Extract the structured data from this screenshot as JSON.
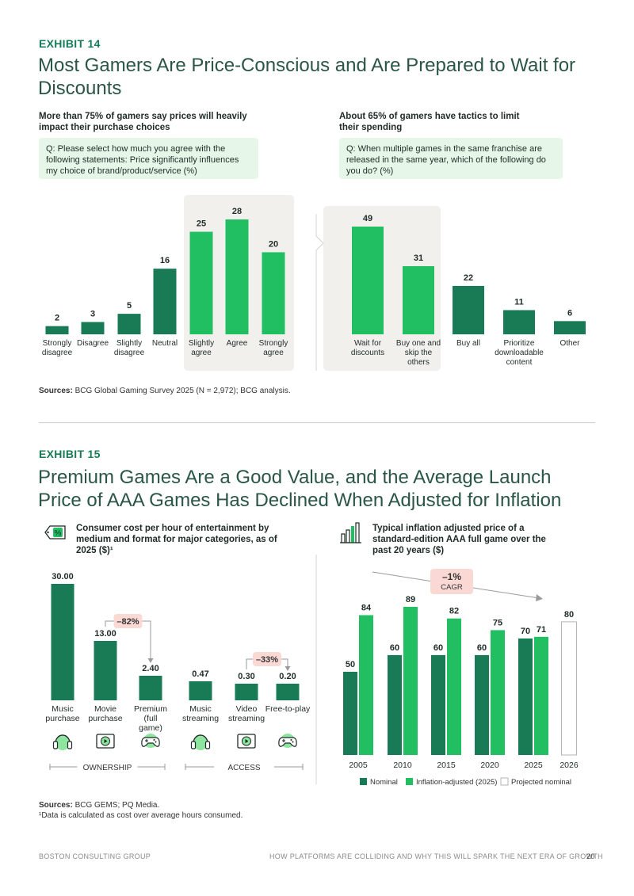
{
  "exhibit14": {
    "label": "EXHIBIT 14",
    "title": "Most Gamers Are Price-Conscious and Are Prepared to Wait for Discounts",
    "left_subtitle": "More than 75% of gamers say prices will heavily impact their purchase choices",
    "left_question": "Q: Please select how much you agree with the following statements: Price significantly influences my choice of brand/product/service (%)",
    "right_subtitle": "About 65% of gamers have tactics to limit their spending",
    "right_question": "Q: When multiple games in the same franchise are released in the same year, which of the following do you do? (%)",
    "sources_label": "Sources:",
    "sources_text": " BCG Global Gaming Survey 2025 (N = 2,972); BCG analysis."
  },
  "exhibit15": {
    "label": "EXHIBIT 15",
    "title": "Premium Games Are a Good Value, and the Average Launch Price of AAA Games Has Declined When Adjusted for Inflation",
    "left_subtitle": "Consumer cost per hour of entertainment by medium and format for major categories, as of 2025 ($)¹",
    "right_subtitle": "Typical inflation adjusted price of a standard-edition AAA full game over the past 20 years ($)",
    "sources_label": "Sources:",
    "sources_text": " BCG GEMS; PQ Media.",
    "footnote": "¹Data is calculated as cost over average hours consumed."
  },
  "footer": {
    "left": "BOSTON CONSULTING GROUP",
    "right": "HOW PLATFORMS ARE COLLIDING AND WHY THIS WILL SPARK THE NEXT ERA OF GROWTH",
    "page": "20"
  },
  "colors": {
    "dark_green": "#197a56",
    "bright_green": "#21bf61",
    "highlight_bg": "#f2f0ed",
    "pink": "#fad9d5",
    "question_bg": "#e6f7e9"
  },
  "chart_data": [
    {
      "type": "bar",
      "title": "Price significantly influences my choice of brand/product/service (%)",
      "categories": [
        "Strongly disagree",
        "Disagree",
        "Slightly disagree",
        "Neutral",
        "Slightly agree",
        "Agree",
        "Strongly agree"
      ],
      "values": [
        2,
        3,
        5,
        16,
        25,
        28,
        20
      ],
      "bar_colors": [
        "dark",
        "dark",
        "dark",
        "dark",
        "bright",
        "bright",
        "bright"
      ],
      "highlighted": [
        "Slightly agree",
        "Agree",
        "Strongly agree"
      ]
    },
    {
      "type": "bar",
      "title": "Which of the following do you do? (%)",
      "categories": [
        "Wait for discounts",
        "Buy one and skip the others",
        "Buy all",
        "Prioritize downloadable content",
        "Other"
      ],
      "values": [
        49,
        31,
        22,
        11,
        6
      ],
      "bar_colors": [
        "bright",
        "bright",
        "dark",
        "dark",
        "dark"
      ],
      "highlighted": [
        "Wait for discounts",
        "Buy one and skip the others"
      ]
    },
    {
      "type": "bar",
      "title": "Consumer cost per hour of entertainment ($)",
      "categories": [
        "Music purchase",
        "Movie purchase",
        "Premium (full game)",
        "Music streaming",
        "Video streaming",
        "Free-to-play"
      ],
      "values": [
        30.0,
        13.0,
        2.4,
        0.47,
        0.3,
        0.2
      ],
      "value_labels": [
        "30.00",
        "13.00",
        "2.40",
        "0.47",
        "0.30",
        "0.20"
      ],
      "icons": [
        "headphones-icon",
        "play-screen-icon",
        "gamepad-icon",
        "headphones-icon",
        "play-screen-icon",
        "gamepad-icon"
      ],
      "annotations": [
        {
          "text": "–82%",
          "from": "Movie purchase",
          "to": "Premium (full game)"
        },
        {
          "text": "–33%",
          "from": "Video streaming",
          "to": "Free-to-play"
        }
      ],
      "groups": [
        {
          "label": "OWNERSHIP",
          "members": [
            "Music purchase",
            "Movie purchase",
            "Premium (full game)"
          ]
        },
        {
          "label": "ACCESS",
          "members": [
            "Music streaming",
            "Video streaming",
            "Free-to-play"
          ]
        }
      ]
    },
    {
      "type": "bar",
      "title": "Typical inflation adjusted price of a standard-edition AAA full game ($)",
      "categories": [
        "2005",
        "2010",
        "2015",
        "2020",
        "2025",
        "2026"
      ],
      "series": [
        {
          "name": "Nominal",
          "values": [
            50,
            60,
            60,
            60,
            70,
            null
          ]
        },
        {
          "name": "Inflation-adjusted (2025)",
          "values": [
            84,
            89,
            82,
            75,
            71,
            null
          ]
        },
        {
          "name": "Projected nominal",
          "values": [
            null,
            null,
            null,
            null,
            null,
            80
          ]
        }
      ],
      "trend_annotation": {
        "text1": "–1%",
        "text2": "CAGR"
      },
      "ylim": [
        0,
        95
      ]
    }
  ]
}
